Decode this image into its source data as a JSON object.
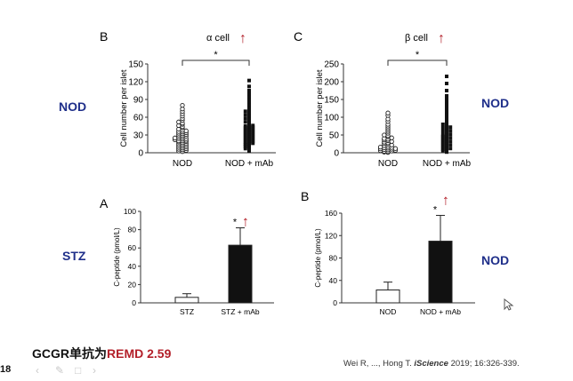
{
  "labels": {
    "nod_left": "NOD",
    "nod_right_top": "NOD",
    "stz": "STZ",
    "nod_right_bottom": "NOD"
  },
  "footer": {
    "prefix": "GCGR单抗为",
    "highlight": "REMD 2.59",
    "page_number": "18",
    "citation_pre": "Wei R, ..., Hong T. ",
    "citation_journal": "iScience",
    "citation_post": " 2019; 16:326-339."
  },
  "arrow_glyph": "↑",
  "colors": {
    "arrow": "#b3202a",
    "label_blue": "#1f2f8a",
    "bar_dark": "#111111"
  },
  "chart_data": [
    {
      "id": "B_top",
      "type": "scatter",
      "panel_letter": "B",
      "title": "α cell",
      "ylabel": "Cell number per islet",
      "ylim": [
        0,
        150
      ],
      "yticks": [
        "0",
        "30",
        "60",
        "90",
        "120",
        "150"
      ],
      "categories": [
        "NOD",
        "NOD + mAb"
      ],
      "significance": "*",
      "trend": "up",
      "groups": [
        {
          "name": "NOD",
          "marker": "open-circle",
          "values": [
            2,
            3,
            4,
            5,
            6,
            7,
            8,
            9,
            10,
            11,
            12,
            13,
            14,
            15,
            16,
            17,
            18,
            19,
            20,
            20,
            21,
            22,
            23,
            24,
            24,
            25,
            26,
            27,
            28,
            29,
            30,
            31,
            32,
            33,
            34,
            35,
            36,
            37,
            38,
            40,
            42,
            44,
            46,
            48,
            50,
            52,
            55,
            58,
            62,
            66,
            70,
            74,
            80
          ]
        },
        {
          "name": "NOD + mAb",
          "marker": "filled-square",
          "values": [
            3,
            5,
            7,
            9,
            10,
            12,
            13,
            14,
            15,
            16,
            17,
            18,
            19,
            20,
            21,
            22,
            23,
            24,
            25,
            26,
            27,
            28,
            29,
            30,
            31,
            32,
            33,
            34,
            35,
            36,
            37,
            38,
            39,
            40,
            41,
            42,
            43,
            44,
            45,
            46,
            48,
            50,
            52,
            54,
            56,
            58,
            60,
            62,
            64,
            66,
            68,
            70,
            72,
            75,
            78,
            82,
            86,
            90,
            95,
            100,
            105,
            112,
            122
          ]
        }
      ]
    },
    {
      "id": "C_top",
      "type": "scatter",
      "panel_letter": "C",
      "title": "β cell",
      "ylabel": "Cell number per islet",
      "ylim": [
        0,
        250
      ],
      "yticks": [
        "0",
        "50",
        "100",
        "150",
        "200",
        "250"
      ],
      "categories": [
        "NOD",
        "NOD + mAb"
      ],
      "significance": "*",
      "trend": "up",
      "groups": [
        {
          "name": "NOD",
          "marker": "open-circle",
          "values": [
            1,
            2,
            3,
            4,
            5,
            6,
            7,
            8,
            9,
            10,
            11,
            12,
            13,
            14,
            15,
            16,
            18,
            20,
            22,
            24,
            26,
            28,
            30,
            32,
            34,
            36,
            38,
            40,
            42,
            45,
            48,
            50,
            55,
            60,
            65,
            70,
            75,
            80,
            88,
            95,
            105,
            112
          ]
        },
        {
          "name": "NOD + mAb",
          "marker": "filled-square",
          "values": [
            2,
            4,
            6,
            8,
            10,
            12,
            14,
            16,
            18,
            20,
            22,
            24,
            26,
            28,
            30,
            32,
            34,
            36,
            38,
            40,
            42,
            44,
            46,
            48,
            50,
            52,
            55,
            58,
            60,
            62,
            65,
            68,
            70,
            72,
            75,
            78,
            80,
            85,
            90,
            95,
            100,
            105,
            110,
            115,
            120,
            125,
            130,
            140,
            150,
            160,
            175,
            195,
            215
          ]
        }
      ]
    },
    {
      "id": "A_bottom",
      "type": "bar",
      "panel_letter": "A",
      "ylabel": "C-peptide (pmol/L)",
      "ylim": [
        0,
        100
      ],
      "yticks": [
        "0",
        "20",
        "40",
        "60",
        "80",
        "100"
      ],
      "categories": [
        "STZ",
        "STZ + mAb"
      ],
      "values": [
        6,
        63
      ],
      "errors": [
        4,
        19
      ],
      "fills": [
        "open",
        "dark"
      ],
      "significance": "*",
      "trend": "up"
    },
    {
      "id": "B_bottom",
      "type": "bar",
      "panel_letter": "B",
      "ylabel": "C-peptide (pmol/L)",
      "ylim": [
        0,
        160
      ],
      "yticks": [
        "0",
        "40",
        "80",
        "120",
        "160"
      ],
      "categories": [
        "NOD",
        "NOD + mAb"
      ],
      "values": [
        23,
        110
      ],
      "errors": [
        14,
        46
      ],
      "fills": [
        "open",
        "dark"
      ],
      "significance": "*",
      "trend": "up"
    }
  ]
}
